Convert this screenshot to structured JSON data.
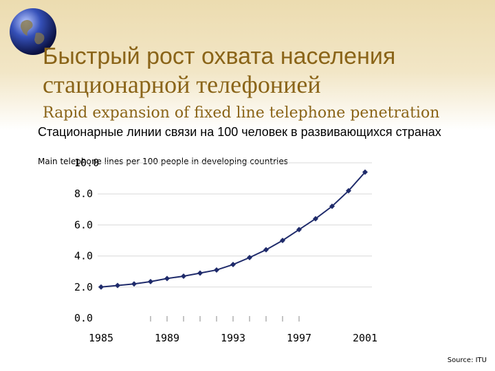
{
  "slide": {
    "title_ru_line1": "Быстрый рост охвата населения",
    "title_ru_line2": "стационарной телефонией",
    "subtitle_en": "Rapid expansion of fixed line telephone penetration",
    "source": "Source: ITU"
  },
  "colors": {
    "title": "#8a6418",
    "series": "#1f2b6b"
  },
  "chart_data": {
    "type": "line",
    "title": "Стационарные линии связи на 100 человек в развивающихся странах",
    "subtitle": "Main telephone lines per 100 people in developing countries",
    "x": [
      1985,
      1986,
      1987,
      1988,
      1989,
      1990,
      1991,
      1992,
      1993,
      1994,
      1995,
      1996,
      1997,
      1998,
      1999,
      2000,
      2001
    ],
    "y": [
      2.0,
      2.1,
      2.2,
      2.35,
      2.55,
      2.7,
      2.9,
      3.1,
      3.45,
      3.9,
      4.4,
      5.0,
      5.7,
      6.4,
      7.2,
      8.2,
      9.4
    ],
    "x_tick_labels": [
      "1985",
      "1989",
      "1993",
      "1997",
      "2001"
    ],
    "y_tick_labels": [
      "0.0",
      "2.0",
      "4.0",
      "6.0",
      "8.0",
      "10.0"
    ],
    "xlim": [
      1985,
      2001
    ],
    "ylim": [
      0,
      10
    ],
    "grid": true,
    "legend": "none"
  }
}
